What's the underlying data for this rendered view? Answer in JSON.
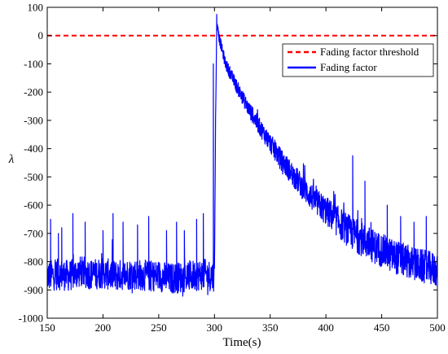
{
  "chart_data": {
    "type": "line",
    "xlabel": "Time(s)",
    "ylabel": "λ",
    "xlim": [
      150,
      500
    ],
    "ylim": [
      -1000,
      100
    ],
    "xticks": [
      150,
      200,
      250,
      300,
      350,
      400,
      450,
      500
    ],
    "yticks": [
      100,
      0,
      -100,
      -200,
      -300,
      -400,
      -500,
      -600,
      -700,
      -800,
      -900,
      -1000
    ],
    "grid": false,
    "legend_position": "top-right",
    "series": [
      {
        "name": "Fading factor threshold",
        "color": "#ff0000",
        "style": "dashed",
        "x": [
          150,
          500
        ],
        "y": [
          0,
          0
        ]
      },
      {
        "name": "Fading factor",
        "color": "#0000ff",
        "style": "solid",
        "x": [
          150,
          160,
          170,
          180,
          190,
          200,
          210,
          220,
          230,
          240,
          250,
          260,
          270,
          280,
          290,
          298,
          300,
          301,
          302,
          303,
          304,
          310,
          320,
          330,
          340,
          350,
          360,
          370,
          380,
          390,
          400,
          410,
          420,
          430,
          440,
          450,
          460,
          470,
          480,
          490,
          500
        ],
        "y": [
          -850,
          -845,
          -850,
          -835,
          -845,
          -840,
          -850,
          -845,
          -845,
          -850,
          -850,
          -860,
          -855,
          -850,
          -845,
          -850,
          -850,
          -300,
          20,
          40,
          -5,
          -100,
          -180,
          -255,
          -320,
          -380,
          -440,
          -490,
          -540,
          -585,
          -620,
          -655,
          -690,
          -715,
          -740,
          -760,
          -780,
          -795,
          -810,
          -820,
          -830
        ]
      }
    ],
    "spikes": [
      {
        "x": 153,
        "y": -650
      },
      {
        "x": 160,
        "y": -700
      },
      {
        "x": 163,
        "y": -680
      },
      {
        "x": 173,
        "y": -630
      },
      {
        "x": 184,
        "y": -660
      },
      {
        "x": 200,
        "y": -690
      },
      {
        "x": 209,
        "y": -630
      },
      {
        "x": 218,
        "y": -660
      },
      {
        "x": 231,
        "y": -670
      },
      {
        "x": 241,
        "y": -640
      },
      {
        "x": 257,
        "y": -690
      },
      {
        "x": 266,
        "y": -660
      },
      {
        "x": 273,
        "y": -690
      },
      {
        "x": 284,
        "y": -650
      },
      {
        "x": 290,
        "y": -630
      },
      {
        "x": 299,
        "y": -100
      },
      {
        "x": 302,
        "y": 75
      },
      {
        "x": 381,
        "y": -460
      },
      {
        "x": 424,
        "y": -425
      },
      {
        "x": 435,
        "y": -515
      },
      {
        "x": 455,
        "y": -600
      },
      {
        "x": 467,
        "y": -640
      },
      {
        "x": 479,
        "y": -660
      },
      {
        "x": 490,
        "y": -640
      }
    ]
  }
}
